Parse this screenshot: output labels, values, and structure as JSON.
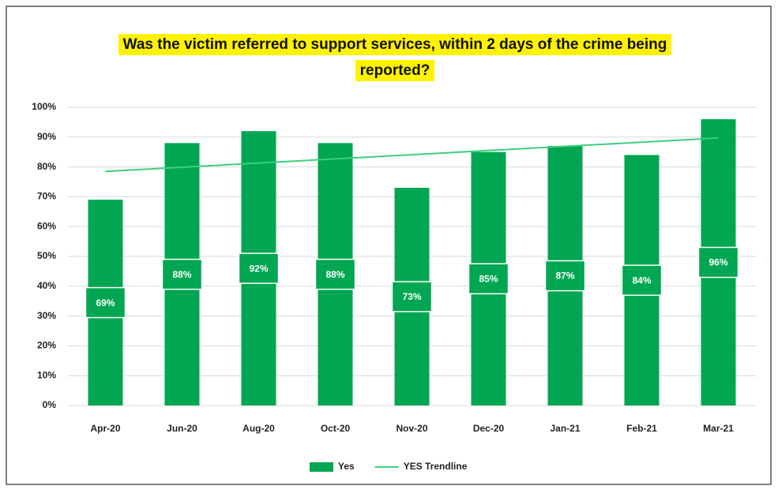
{
  "chart_data": {
    "type": "bar",
    "title": "Was the victim referred to support services, within 2 days of the crime being reported?",
    "categories": [
      "Apr-20",
      "Jun-20",
      "Aug-20",
      "Oct-20",
      "Nov-20",
      "Dec-20",
      "Jan-21",
      "Feb-21",
      "Mar-21"
    ],
    "series": [
      {
        "name": "Yes",
        "type": "bar",
        "color": "#00a651",
        "values": [
          69,
          88,
          92,
          88,
          73,
          85,
          87,
          84,
          96
        ],
        "value_labels": [
          "69%",
          "88%",
          "92%",
          "88%",
          "73%",
          "85%",
          "87%",
          "84%",
          "96%"
        ]
      },
      {
        "name": "YES Trendline",
        "type": "line",
        "color": "#3ccf7d",
        "values": [
          78.5,
          79.9,
          81.3,
          82.7,
          84.1,
          85.5,
          86.9,
          88.3,
          89.7
        ]
      }
    ],
    "ylim": [
      0,
      100
    ],
    "yticks": [
      {
        "value": 0,
        "label": "0%"
      },
      {
        "value": 10,
        "label": "10%"
      },
      {
        "value": 20,
        "label": "20%"
      },
      {
        "value": 30,
        "label": "30%"
      },
      {
        "value": 40,
        "label": "40%"
      },
      {
        "value": 50,
        "label": "50%"
      },
      {
        "value": 60,
        "label": "60%"
      },
      {
        "value": 70,
        "label": "70%"
      },
      {
        "value": 80,
        "label": "80%"
      },
      {
        "value": 90,
        "label": "90%"
      },
      {
        "value": 100,
        "label": "100%"
      }
    ],
    "grid": true,
    "legend": "bottom"
  }
}
